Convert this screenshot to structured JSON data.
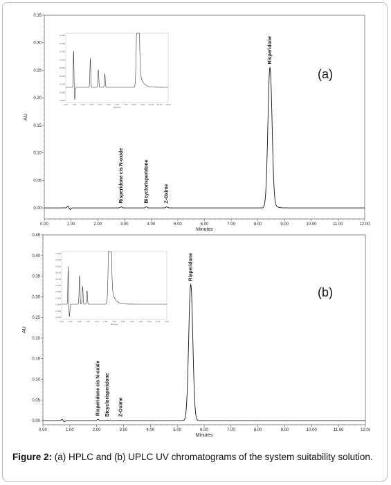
{
  "chart_data": [
    {
      "type": "line",
      "panel_label": "(a)",
      "xlabel": "Minutes",
      "ylabel": "AU",
      "xlim": [
        0,
        12
      ],
      "ylim": [
        -0.02,
        0.35
      ],
      "x_ticks": [
        "0.00",
        "1.00",
        "2.00",
        "3.00",
        "4.00",
        "5.00",
        "6.00",
        "7.00",
        "8.00",
        "9.00",
        "10.00",
        "11.00",
        "12.00"
      ],
      "y_ticks": [
        "0.00",
        "0.05",
        "0.10",
        "0.15",
        "0.20",
        "0.25",
        "0.30",
        "0.35"
      ],
      "grid": false,
      "peaks": [
        {
          "label": "Risperidone cis N-oxide",
          "x": 2.88,
          "y": 0.002
        },
        {
          "label": "Bicyclorisperidone",
          "x": 3.82,
          "y": 0.002
        },
        {
          "label": "Z-Oxime",
          "x": 4.58,
          "y": 0.002
        },
        {
          "label": "Risperidone",
          "x": 8.45,
          "y": 0.255
        }
      ],
      "baseline_artifact": {
        "x": 0.92
      },
      "inset": {
        "y_ticks": [
          "0.040",
          "0.035",
          "0.030",
          "0.025",
          "0.020",
          "0.015",
          "0.010",
          "0.005",
          "0.000"
        ],
        "x_ticks": [
          "0.00",
          "1.00",
          "2.00",
          "3.00",
          "4.00",
          "5.00",
          "6.00",
          "7.00",
          "8.00",
          "9.00",
          "10.00",
          "11.00",
          "12.00"
        ],
        "xlabel": "Minutes"
      }
    },
    {
      "type": "line",
      "panel_label": "(b)",
      "xlabel": "Minutes",
      "ylabel": "AU",
      "xlim": [
        0,
        12
      ],
      "ylim": [
        -0.01,
        0.45
      ],
      "x_ticks": [
        "0.00",
        "1.00",
        "2.00",
        "3.00",
        "4.00",
        "5.00",
        "6.00",
        "7.00",
        "8.00",
        "9.00",
        "10.00",
        "11.00",
        "12.0("
      ],
      "y_ticks": [
        "0.00",
        "0.05",
        "0.10",
        "0.15",
        "0.20",
        "0.25",
        "0.30",
        "0.35",
        "0.40",
        "0.45"
      ],
      "grid": false,
      "peaks": [
        {
          "label": "Risperidone cis N-oxide",
          "x": 2.05,
          "y": 0.003
        },
        {
          "label": "Bicyclorisperidone",
          "x": 2.4,
          "y": 0.001
        },
        {
          "label": "Z-Oxime",
          "x": 2.9,
          "y": 0.001
        },
        {
          "label": "Risperidone",
          "x": 5.5,
          "y": 0.33
        }
      ],
      "baseline_artifact": {
        "x": 0.75
      },
      "inset": {
        "y_ticks": [
          "0.020",
          "0.018",
          "0.016",
          "0.014",
          "0.012",
          "0.010",
          "0.008",
          "0.006",
          "0.004",
          "0.002",
          "0.000"
        ],
        "x_ticks": [
          "0.00",
          "0.50",
          "1.00",
          "1.50",
          "2.00",
          "2.50",
          "3.00",
          "3.50",
          "4.00",
          "4.50",
          "5.00",
          "5.50",
          "6.00"
        ],
        "xlabel": "Minutes"
      }
    }
  ],
  "caption": {
    "prefix": "Figure 2:",
    "text": " (a) HPLC and (b) UPLC UV chromatograms of the system suitability solution."
  }
}
